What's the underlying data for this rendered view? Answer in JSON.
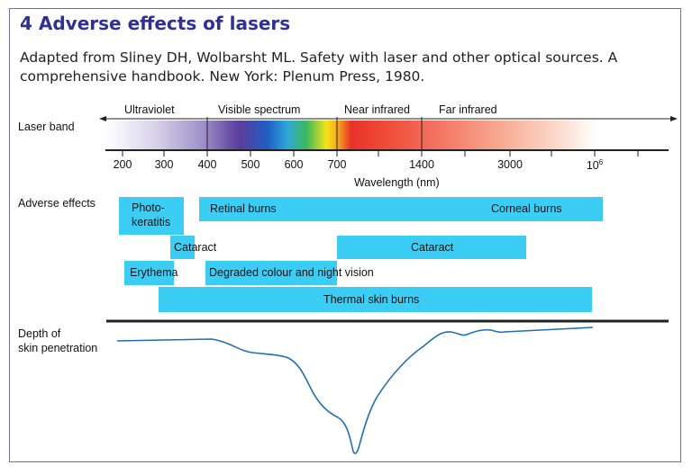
{
  "title": "4 Adverse effects of lasers",
  "subtitle": {
    "line1": "Adapted from Sliney DH, Wolbarsht ML. Safety with laser and other optical sources. A",
    "line2": "comprehensive handbook. New York: Plenum Press, 1980."
  },
  "rows": {
    "laser_band": "Laser band",
    "adverse_effects": "Adverse effects",
    "depth_line1": "Depth of",
    "depth_line2": "skin penetration"
  },
  "bands": {
    "ultraviolet": "Ultraviolet",
    "visible": "Visible spectrum",
    "near_ir": "Near infrared",
    "far_ir": "Far infrared"
  },
  "axis": {
    "ticks": [
      "200",
      "300",
      "400",
      "500",
      "600",
      "700",
      "1400",
      "3000",
      "10"
    ],
    "last_tick_exponent": "6",
    "title": "Wavelength (nm)"
  },
  "effects": {
    "photokeratitis_line1": "Photo-",
    "photokeratitis_line2": "keratitis",
    "retinal_burns": "Retinal burns",
    "corneal_burns": "Corneal burns",
    "cataract_short": "Cataract",
    "cataract_long": "Cataract",
    "erythema": "Erythema",
    "degraded_vision": "Degraded colour and night vision",
    "thermal_burns": "Thermal skin burns"
  },
  "colors": {
    "title": "#2e3192",
    "effect_bar": "#3ccdf5",
    "curve": "#1f6fb2",
    "frame": "#6b6fb0"
  }
}
